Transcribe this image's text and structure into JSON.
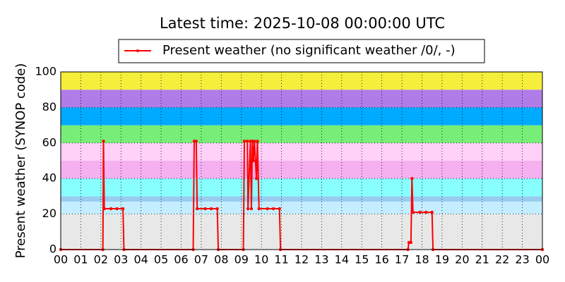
{
  "chart_data": {
    "type": "line",
    "title": "Latest time: 2025-10-08 00:00:00 UTC",
    "y_label": "Present weather (SYNOP code)",
    "xlim": [
      0,
      24
    ],
    "ylim": [
      0,
      100
    ],
    "xticks": [
      {
        "value": 0,
        "label": "00"
      },
      {
        "value": 1,
        "label": "01"
      },
      {
        "value": 2,
        "label": "02"
      },
      {
        "value": 3,
        "label": "03"
      },
      {
        "value": 4,
        "label": "04"
      },
      {
        "value": 5,
        "label": "05"
      },
      {
        "value": 6,
        "label": "06"
      },
      {
        "value": 7,
        "label": "07"
      },
      {
        "value": 8,
        "label": "08"
      },
      {
        "value": 9,
        "label": "09"
      },
      {
        "value": 10,
        "label": "10"
      },
      {
        "value": 11,
        "label": "11"
      },
      {
        "value": 12,
        "label": "12"
      },
      {
        "value": 13,
        "label": "13"
      },
      {
        "value": 14,
        "label": "14"
      },
      {
        "value": 15,
        "label": "15"
      },
      {
        "value": 16,
        "label": "16"
      },
      {
        "value": 17,
        "label": "17"
      },
      {
        "value": 18,
        "label": "18"
      },
      {
        "value": 19,
        "label": "19"
      },
      {
        "value": 20,
        "label": "20"
      },
      {
        "value": 21,
        "label": "21"
      },
      {
        "value": 22,
        "label": "22"
      },
      {
        "value": 23,
        "label": "23"
      },
      {
        "value": 24,
        "label": "00"
      }
    ],
    "yticks": [
      0,
      20,
      40,
      60,
      80,
      100
    ],
    "grid": true,
    "bands": [
      {
        "from": 0,
        "to": 20,
        "color": "#e8e8e8"
      },
      {
        "from": 20,
        "to": 27,
        "color": "#c4eeff"
      },
      {
        "from": 27,
        "to": 30,
        "color": "#99ccee"
      },
      {
        "from": 30,
        "to": 40,
        "color": "#88ffff"
      },
      {
        "from": 40,
        "to": 50,
        "color": "#f5b0f0"
      },
      {
        "from": 50,
        "to": 60,
        "color": "#ffd0f8"
      },
      {
        "from": 60,
        "to": 70,
        "color": "#77ee77"
      },
      {
        "from": 70,
        "to": 80,
        "color": "#00aaff"
      },
      {
        "from": 80,
        "to": 90,
        "color": "#b07ce8"
      },
      {
        "from": 90,
        "to": 100,
        "color": "#f5ee3a"
      }
    ],
    "legend_position": "top",
    "series": [
      {
        "name": "Present weather (no significant weather /0/, -)",
        "color": "#ff0000",
        "x": [
          0,
          2.1,
          2.13,
          2.17,
          2.5,
          2.8,
          3.1,
          3.15,
          6.6,
          6.65,
          6.75,
          6.8,
          7.2,
          7.5,
          7.8,
          7.85,
          9.1,
          9.15,
          9.3,
          9.33,
          9.45,
          9.5,
          9.55,
          9.6,
          9.65,
          9.75,
          9.8,
          9.88,
          10.3,
          10.6,
          10.9,
          10.95,
          17.3,
          17.35,
          17.45,
          17.5,
          17.55,
          17.9,
          18.2,
          18.5,
          18.55,
          24
        ],
        "values": [
          0,
          0,
          61,
          23,
          23,
          23,
          23,
          0,
          0,
          61,
          61,
          23,
          23,
          23,
          23,
          0,
          0,
          61,
          61,
          23,
          61,
          23,
          61,
          50,
          61,
          40,
          61,
          23,
          23,
          23,
          23,
          0,
          0,
          4,
          4,
          40,
          21,
          21,
          21,
          21,
          0,
          0
        ]
      }
    ]
  }
}
